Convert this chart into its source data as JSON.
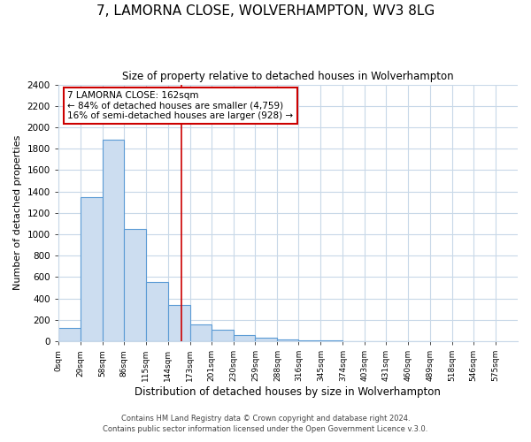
{
  "title": "7, LAMORNA CLOSE, WOLVERHAMPTON, WV3 8LG",
  "subtitle": "Size of property relative to detached houses in Wolverhampton",
  "xlabel": "Distribution of detached houses by size in Wolverhampton",
  "ylabel": "Number of detached properties",
  "bar_values": [
    125,
    1350,
    1880,
    1050,
    550,
    340,
    160,
    105,
    60,
    35,
    20,
    10,
    5,
    3,
    3,
    3,
    3
  ],
  "bin_edges": [
    0,
    29,
    58,
    86,
    115,
    144,
    173,
    201,
    230,
    259,
    288,
    316,
    345,
    374,
    403,
    431,
    460,
    489
  ],
  "x_tick_positions": [
    0,
    29,
    58,
    86,
    115,
    144,
    173,
    201,
    230,
    259,
    288,
    316,
    345,
    374,
    403,
    431,
    460,
    489,
    518,
    546,
    575
  ],
  "x_tick_labels": [
    "0sqm",
    "29sqm",
    "58sqm",
    "86sqm",
    "115sqm",
    "144sqm",
    "173sqm",
    "201sqm",
    "230sqm",
    "259sqm",
    "288sqm",
    "316sqm",
    "345sqm",
    "374sqm",
    "403sqm",
    "431sqm",
    "460sqm",
    "489sqm",
    "518sqm",
    "546sqm",
    "575sqm"
  ],
  "bar_color": "#ccddf0",
  "bar_edge_color": "#5b9bd5",
  "property_line_x": 162,
  "property_line_color": "#cc0000",
  "annotation_line1": "7 LAMORNA CLOSE: 162sqm",
  "annotation_line2": "← 84% of detached houses are smaller (4,759)",
  "annotation_line3": "16% of semi-detached houses are larger (928) →",
  "annotation_box_color": "#ffffff",
  "annotation_box_edge_color": "#cc0000",
  "ylim": [
    0,
    2400
  ],
  "xlim": [
    0,
    604
  ],
  "yticks": [
    0,
    200,
    400,
    600,
    800,
    1000,
    1200,
    1400,
    1600,
    1800,
    2000,
    2200,
    2400
  ],
  "footer_line1": "Contains HM Land Registry data © Crown copyright and database right 2024.",
  "footer_line2": "Contains public sector information licensed under the Open Government Licence v.3.0.",
  "background_color": "#ffffff",
  "grid_color": "#c8d8e8"
}
